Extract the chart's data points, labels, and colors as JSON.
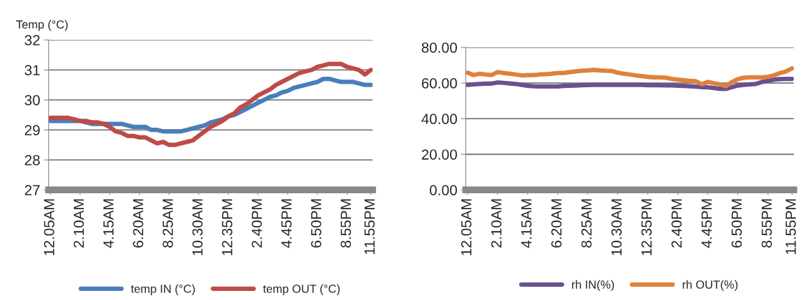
{
  "chart_data": [
    {
      "type": "line",
      "ylabel": "Temp (°C)",
      "categories": [
        "12.05AM",
        null,
        null,
        null,
        null,
        "2.10AM",
        null,
        null,
        null,
        null,
        "4.15AM",
        null,
        null,
        null,
        null,
        "6.20AM",
        null,
        null,
        null,
        null,
        "8.25AM",
        null,
        null,
        null,
        null,
        "10.30AM",
        null,
        null,
        null,
        null,
        "12.35PM",
        null,
        null,
        null,
        null,
        "2.40PM",
        null,
        null,
        null,
        null,
        "4.45PM",
        null,
        null,
        null,
        null,
        "6.50PM",
        null,
        null,
        null,
        null,
        "8.55PM",
        null,
        null,
        null,
        "11.55PM"
      ],
      "series": [
        {
          "name": "temp IN (°C)",
          "color": "#4a7ebb",
          "values": [
            29.3,
            29.3,
            29.3,
            29.3,
            29.3,
            29.3,
            29.25,
            29.2,
            29.2,
            29.2,
            29.2,
            29.2,
            29.2,
            29.15,
            29.1,
            29.1,
            29.1,
            29.0,
            29.0,
            28.95,
            28.95,
            28.95,
            28.95,
            29.0,
            29.05,
            29.1,
            29.15,
            29.25,
            29.3,
            29.35,
            29.45,
            29.5,
            29.6,
            29.7,
            29.8,
            29.9,
            30.0,
            30.1,
            30.15,
            30.25,
            30.3,
            30.4,
            30.45,
            30.5,
            30.55,
            30.6,
            30.7,
            30.7,
            30.65,
            30.6,
            30.6,
            30.6,
            30.55,
            30.5,
            30.5
          ]
        },
        {
          "name": "temp OUT (°C)",
          "color": "#be4b48",
          "values": [
            29.4,
            29.4,
            29.4,
            29.4,
            29.35,
            29.3,
            29.3,
            29.25,
            29.25,
            29.2,
            29.1,
            28.95,
            28.9,
            28.8,
            28.8,
            28.75,
            28.75,
            28.65,
            28.55,
            28.6,
            28.5,
            28.5,
            28.55,
            28.6,
            28.65,
            28.8,
            28.95,
            29.1,
            29.2,
            29.3,
            29.45,
            29.55,
            29.75,
            29.85,
            30.0,
            30.15,
            30.25,
            30.35,
            30.5,
            30.6,
            30.7,
            30.8,
            30.9,
            30.95,
            31.0,
            31.1,
            31.15,
            31.2,
            31.2,
            31.2,
            31.1,
            31.05,
            31.0,
            30.85,
            31.0
          ]
        }
      ],
      "ylim": [
        27,
        32
      ],
      "yticks": [
        27,
        28,
        29,
        30,
        31,
        32
      ],
      "grid": "y",
      "legend": "bottom"
    },
    {
      "type": "line",
      "categories": [
        "12.05AM",
        null,
        null,
        null,
        null,
        "2.10AM",
        null,
        null,
        null,
        null,
        "4.15AM",
        null,
        null,
        null,
        null,
        "6.20AM",
        null,
        null,
        null,
        null,
        "8.25AM",
        null,
        null,
        null,
        null,
        "10.30AM",
        null,
        null,
        null,
        null,
        "12.35PM",
        null,
        null,
        null,
        null,
        "2.40PM",
        null,
        null,
        null,
        null,
        "4.45PM",
        null,
        null,
        null,
        null,
        "6.50PM",
        null,
        null,
        null,
        null,
        "8.55PM",
        null,
        null,
        null,
        "11.55PM"
      ],
      "series": [
        {
          "name": "rh IN(%)",
          "color": "#6a5090",
          "values": [
            59.0,
            59.3,
            59.5,
            59.7,
            59.7,
            60.3,
            60.1,
            59.8,
            59.5,
            59.0,
            58.5,
            58.2,
            58.1,
            58.1,
            58.1,
            58.1,
            58.4,
            58.5,
            58.6,
            58.8,
            58.9,
            59.0,
            59.0,
            59.0,
            59.0,
            59.0,
            59.0,
            59.0,
            59.0,
            59.0,
            58.8,
            58.8,
            58.8,
            58.7,
            58.7,
            58.5,
            58.4,
            58.2,
            58.0,
            57.7,
            57.6,
            57.2,
            56.7,
            56.7,
            57.7,
            58.6,
            59.0,
            59.3,
            59.5,
            60.6,
            61.2,
            61.9,
            62.2,
            62.3,
            62.3
          ]
        },
        {
          "name": "rh OUT(%)",
          "color": "#e0813a",
          "values": [
            65.8,
            64.5,
            65.2,
            64.8,
            64.5,
            66.1,
            65.6,
            65.2,
            64.8,
            64.3,
            64.5,
            64.5,
            64.8,
            64.9,
            65.2,
            65.6,
            65.6,
            66.1,
            66.5,
            66.9,
            67.1,
            67.4,
            67.1,
            66.9,
            66.8,
            65.8,
            65.2,
            64.8,
            64.3,
            63.9,
            63.5,
            63.2,
            63.2,
            63.0,
            62.3,
            61.9,
            61.6,
            61.2,
            61.0,
            59.3,
            60.6,
            59.9,
            59.3,
            58.2,
            60.6,
            62.2,
            63.0,
            63.2,
            63.2,
            63.2,
            63.5,
            64.3,
            65.6,
            66.5,
            68.2
          ]
        }
      ],
      "ylim": [
        0,
        80
      ],
      "yticks": [
        {
          "value": 0,
          "label": "0.00"
        },
        {
          "value": 20,
          "label": "20.00"
        },
        {
          "value": 40,
          "label": "40.00"
        },
        {
          "value": 60,
          "label": "60.00"
        },
        {
          "value": 80,
          "label": "80.00"
        }
      ],
      "grid": "y",
      "legend": "bottom"
    }
  ]
}
